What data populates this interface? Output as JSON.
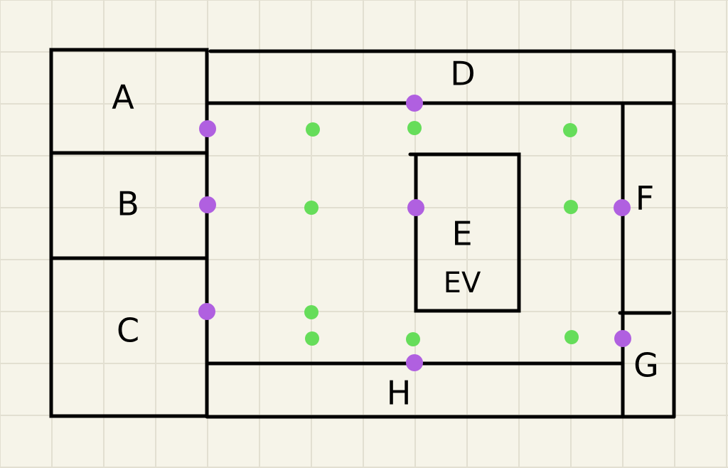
{
  "colors": {
    "background": "#f6f4e9",
    "grid": "#e2dfd1",
    "walls": "#000000",
    "purple_points": "#b060e0",
    "green_points": "#66dd5a"
  },
  "labels": {
    "A": "A",
    "B": "B",
    "C": "C",
    "D": "D",
    "E": "E",
    "EV": "EV",
    "F": "F",
    "G": "G",
    "H": "H"
  }
}
